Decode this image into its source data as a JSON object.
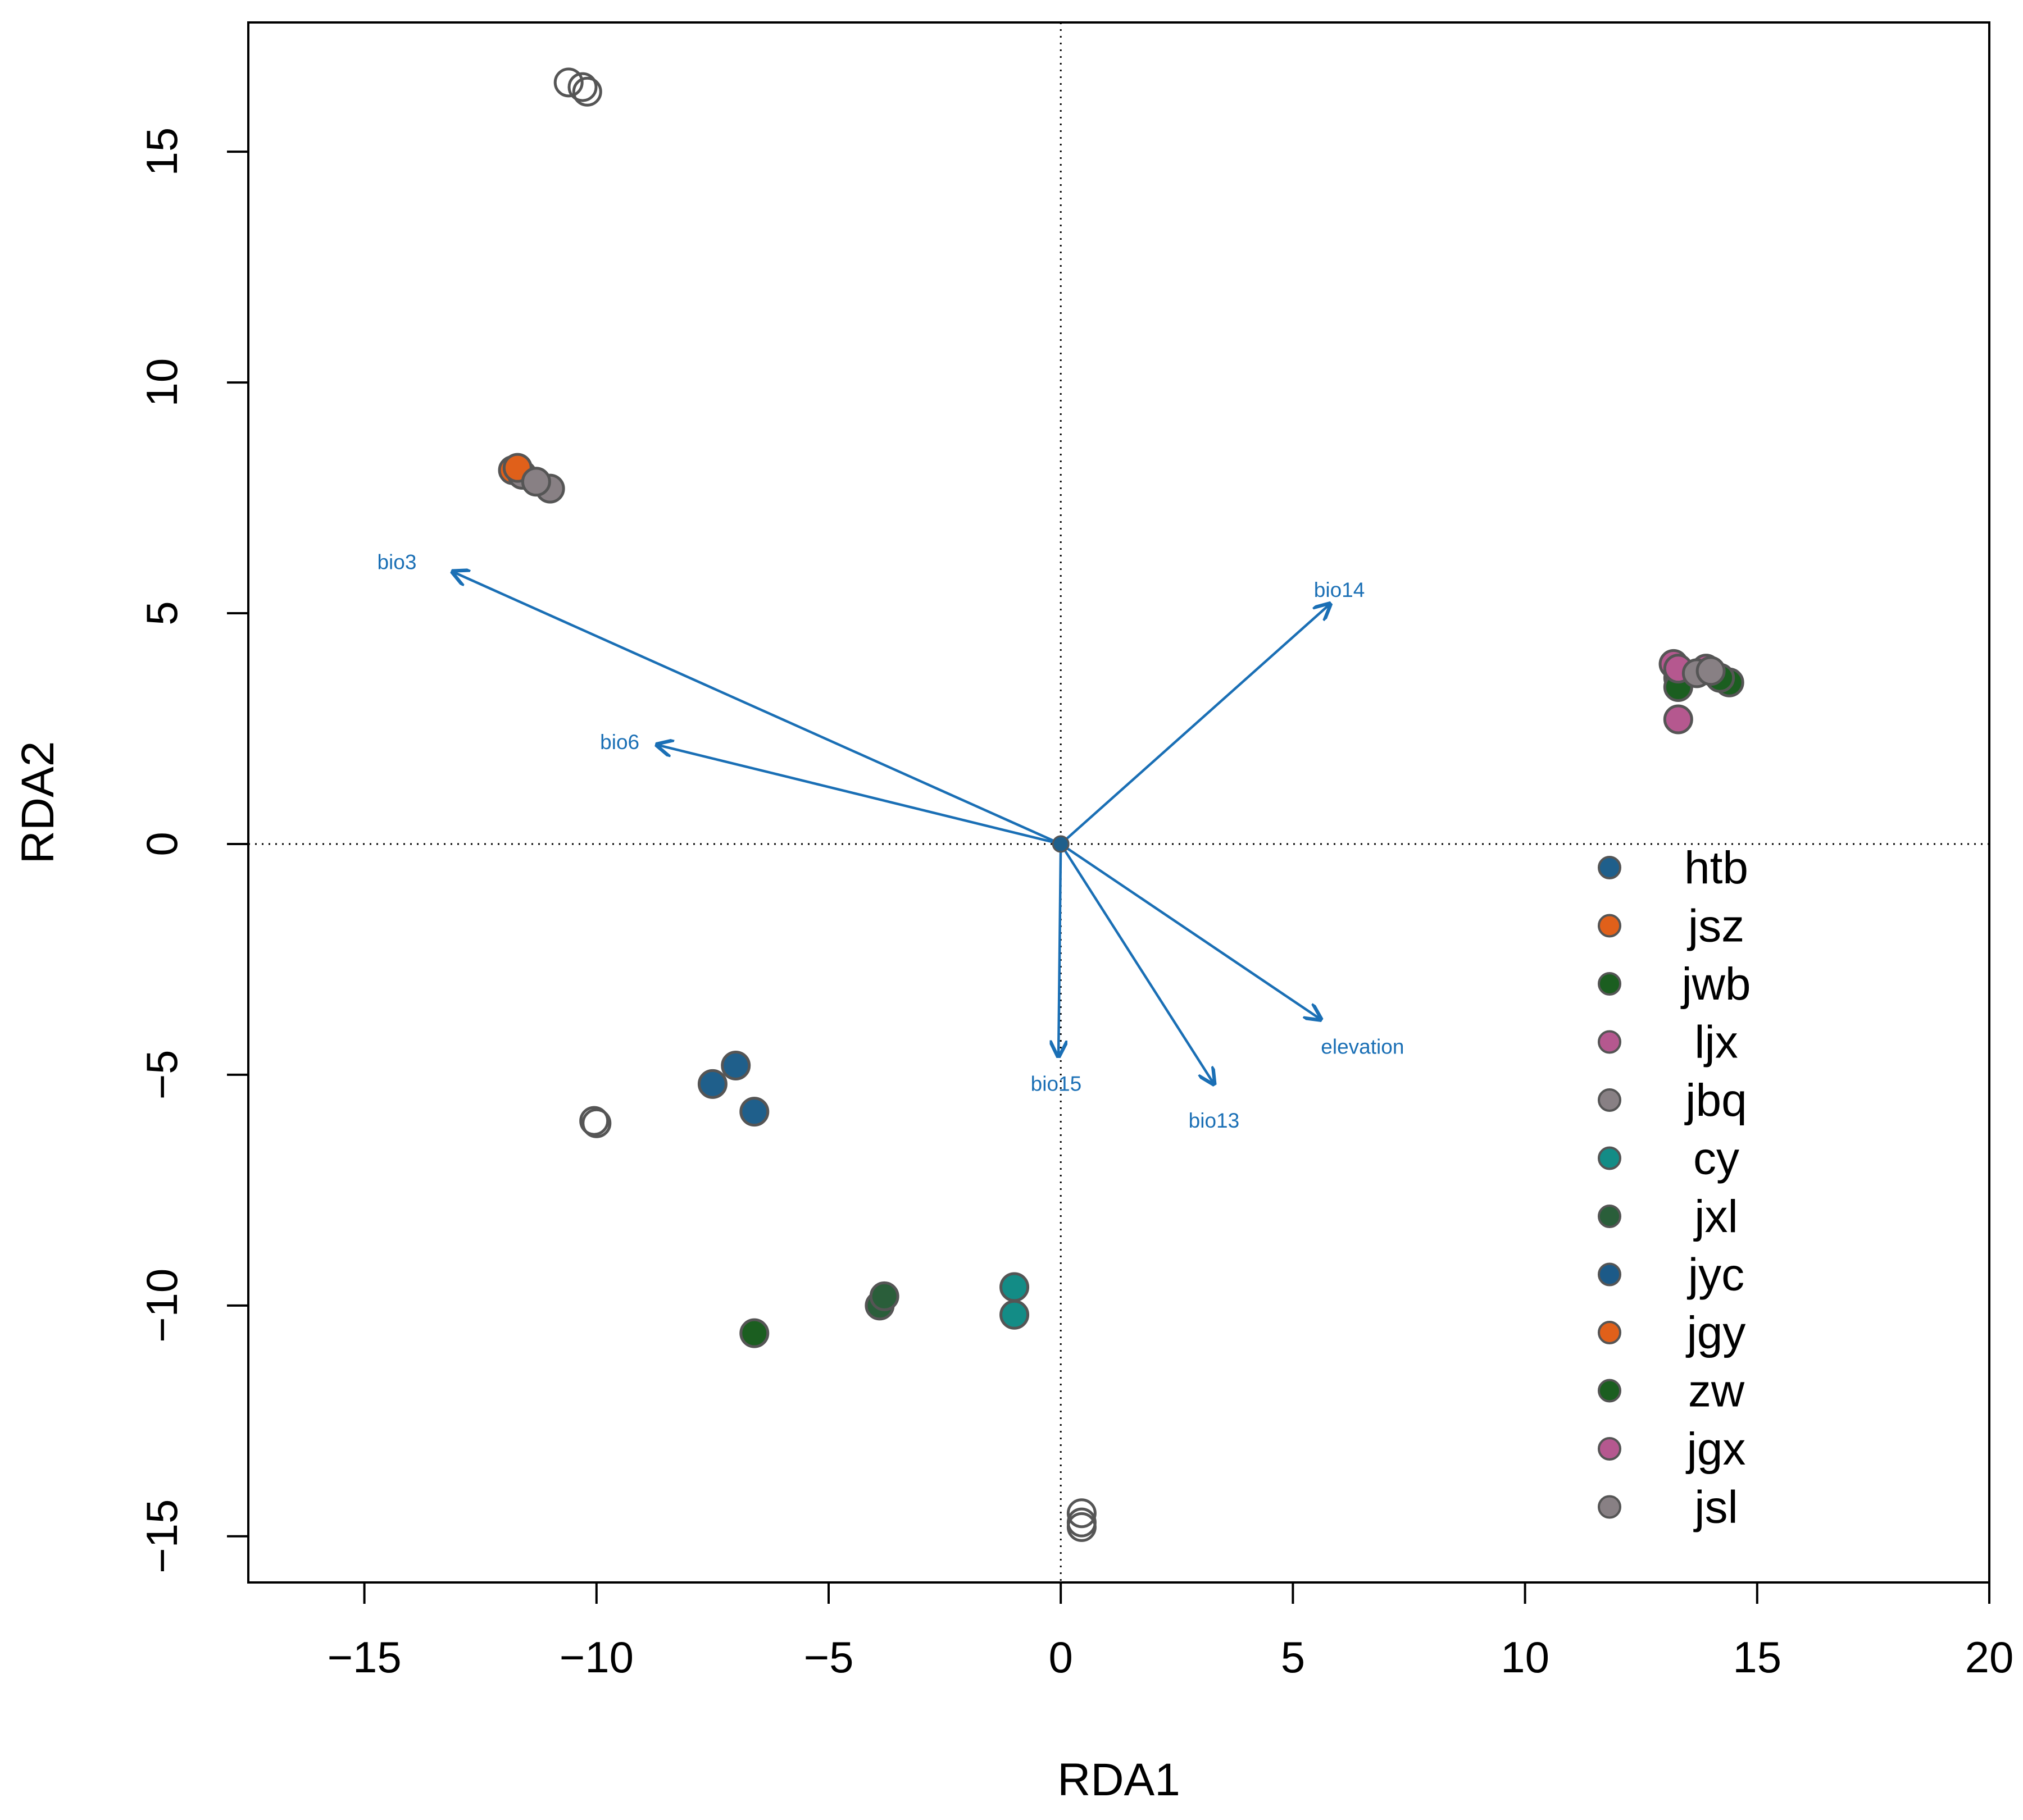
{
  "chart_data": {
    "type": "scatter",
    "xlabel": "RDA1",
    "ylabel": "RDA2",
    "xlim": [
      -17.5,
      20
    ],
    "ylim": [
      -16,
      17.8
    ],
    "xticks": [
      -15,
      -10,
      -5,
      0,
      5,
      10,
      15,
      20
    ],
    "yticks": [
      -15,
      -10,
      -5,
      0,
      5,
      10,
      15
    ],
    "xtick_labels": [
      "−15",
      "−10",
      "−5",
      "0",
      "5",
      "10",
      "15",
      "20"
    ],
    "ytick_labels": [
      "−15",
      "−10",
      "−5",
      "0",
      "5",
      "10",
      "15"
    ],
    "reference_lines": {
      "x": 0,
      "y": 0,
      "style": "dotted"
    },
    "arrow_color": "#1a6fb5",
    "point_outline": "#555555",
    "legend_position": "bottom-right",
    "series": [
      {
        "name": "htb",
        "color": "#1f5f8b",
        "points": [
          [
            -7.5,
            -5.2
          ],
          [
            -7.0,
            -4.8
          ],
          [
            -6.6,
            -5.8
          ]
        ]
      },
      {
        "name": "jsz",
        "color": "#e0601a",
        "points": [
          [
            -11.8,
            8.1
          ]
        ]
      },
      {
        "name": "jwb",
        "color": "#1b5e20",
        "points": [
          [
            -6.6,
            -10.6
          ],
          [
            13.3,
            3.6
          ],
          [
            14.4,
            3.5
          ]
        ]
      },
      {
        "name": "ljx",
        "color": "#b5588f",
        "points": [
          [
            13.2,
            3.9
          ],
          [
            13.3,
            2.7
          ]
        ]
      },
      {
        "name": "jbq",
        "color": "#888084",
        "points": [
          [
            -11.6,
            8.0
          ],
          [
            -11.0,
            7.7
          ]
        ]
      },
      {
        "name": "cy",
        "color": "#138c86",
        "points": [
          [
            -1.0,
            -9.6
          ],
          [
            -1.0,
            -10.2
          ]
        ]
      },
      {
        "name": "jxl",
        "color": "#2a5e3a",
        "points": [
          [
            -3.9,
            -10.0
          ],
          [
            -3.8,
            -9.8
          ]
        ]
      },
      {
        "name": "jyc",
        "color": "#1c5a88",
        "points": []
      },
      {
        "name": "jgy",
        "color": "#e0601a",
        "points": [
          [
            -11.7,
            8.15
          ]
        ]
      },
      {
        "name": "zw",
        "color": "#1b5e20",
        "points": [
          [
            13.3,
            3.4
          ],
          [
            14.2,
            3.6
          ]
        ]
      },
      {
        "name": "jgx",
        "color": "#b5588f",
        "points": [
          [
            13.9,
            3.8
          ],
          [
            13.3,
            3.8
          ]
        ]
      },
      {
        "name": "jsl",
        "color": "#888084",
        "points": [
          [
            -11.3,
            7.85
          ],
          [
            13.7,
            3.7
          ],
          [
            14.0,
            3.75
          ]
        ]
      }
    ],
    "unassigned_points": [
      [
        -10.6,
        16.5
      ],
      [
        -10.3,
        16.4
      ],
      [
        -10.2,
        16.3
      ],
      [
        -10.05,
        -6.0
      ],
      [
        -10.0,
        -6.05
      ],
      [
        0.45,
        -14.5
      ],
      [
        0.45,
        -14.8
      ],
      [
        0.45,
        -14.7
      ]
    ],
    "center_point": {
      "x": 0,
      "y": 0,
      "color": "#1f5f8b"
    },
    "arrows": [
      {
        "name": "bio3",
        "x": -13.1,
        "y": 5.9,
        "label_x": -14.3,
        "label_y": 6.1
      },
      {
        "name": "bio6",
        "x": -8.7,
        "y": 2.15,
        "label_x": -9.5,
        "label_y": 2.2
      },
      {
        "name": "bio14",
        "x": 5.8,
        "y": 5.2,
        "label_x": 6.0,
        "label_y": 5.5
      },
      {
        "name": "elevation",
        "x": 5.6,
        "y": -3.8,
        "label_x": 6.5,
        "label_y": -4.4
      },
      {
        "name": "bio13",
        "x": 3.3,
        "y": -5.2,
        "label_x": 3.3,
        "label_y": -6.0
      },
      {
        "name": "bio15",
        "x": -0.05,
        "y": -4.6,
        "label_x": -0.1,
        "label_y": -5.2
      }
    ]
  }
}
